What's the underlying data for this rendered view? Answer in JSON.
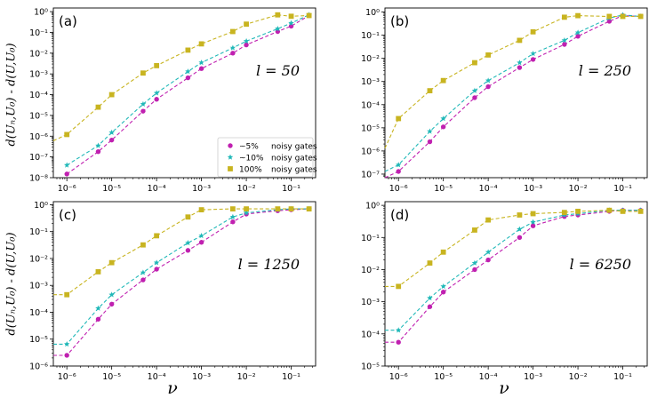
{
  "figure": {
    "ylabel_top": "d(Uₙ,U₀) - d(U,U₀)",
    "ylabel_bottom": "d(Uₙ,U₀) - d(U,U₀)",
    "xlabel": "ν"
  },
  "chart_data": [
    {
      "type": "line",
      "panel": "(a)",
      "annotation": "l = 50",
      "x": [
        1e-06,
        5e-06,
        1e-05,
        5e-05,
        0.0001,
        0.0005,
        0.001,
        0.005,
        0.01,
        0.05,
        0.1,
        0.25
      ],
      "xlim": [
        5e-07,
        0.35
      ],
      "ylim": [
        1e-08,
        1.5
      ],
      "yticks": [
        1e-08,
        1e-07,
        1e-06,
        1e-05,
        0.0001,
        0.001,
        0.01,
        0.1,
        1.0
      ],
      "ytick_labels": [
        "10⁻⁸",
        "10⁻⁷",
        "10⁻⁶",
        "10⁻⁵",
        "10⁻⁴",
        "10⁻³",
        "10⁻²",
        "10⁻¹",
        "10⁰"
      ],
      "xticks": [
        1e-06,
        1e-05,
        0.0001,
        0.001,
        0.01,
        0.1
      ],
      "xtick_labels": [
        "10⁻⁶",
        "10⁻⁵",
        "10⁻⁴",
        "10⁻³",
        "10⁻²",
        "10⁻¹"
      ],
      "legend": {
        "position": "center-right",
        "suffix": "noisy gates"
      },
      "series": [
        {
          "name": "~5%",
          "color": "#c020b0",
          "marker": "circle",
          "values": [
            1.5e-08,
            1.8e-07,
            6.5e-07,
            1.6e-05,
            6e-05,
            0.00065,
            0.0018,
            0.01,
            0.025,
            0.11,
            0.2,
            0.65
          ]
        },
        {
          "name": "~10%",
          "color": "#20b8b8",
          "marker": "star",
          "values": [
            4e-08,
            3.5e-07,
            1.5e-06,
            3.5e-05,
            0.00012,
            0.0013,
            0.0035,
            0.018,
            0.038,
            0.15,
            0.28,
            0.7
          ]
        },
        {
          "name": "100%",
          "color": "#c8b420",
          "marker": "square",
          "lead_in": 6e-07,
          "values": [
            1.2e-06,
            2.5e-05,
            0.0001,
            0.0011,
            0.0025,
            0.014,
            0.028,
            0.11,
            0.25,
            0.7,
            0.6,
            0.65
          ]
        }
      ]
    },
    {
      "type": "line",
      "panel": "(b)",
      "annotation": "l = 250",
      "x": [
        1e-06,
        5e-06,
        1e-05,
        5e-05,
        0.0001,
        0.0005,
        0.001,
        0.005,
        0.01,
        0.05,
        0.1,
        0.25
      ],
      "xlim": [
        5e-07,
        0.35
      ],
      "ylim": [
        7e-08,
        1.5
      ],
      "yticks": [
        1e-07,
        1e-06,
        1e-05,
        0.0001,
        0.001,
        0.01,
        0.1,
        1.0
      ],
      "ytick_labels": [
        "10⁻⁷",
        "10⁻⁶",
        "10⁻⁵",
        "10⁻⁴",
        "10⁻³",
        "10⁻²",
        "10⁻¹",
        "10⁰"
      ],
      "xticks": [
        1e-06,
        1e-05,
        0.0001,
        0.001,
        0.01,
        0.1
      ],
      "xtick_labels": [
        "10⁻⁶",
        "10⁻⁵",
        "10⁻⁴",
        "10⁻³",
        "10⁻²",
        "10⁻¹"
      ],
      "series": [
        {
          "name": "~5%",
          "color": "#c020b0",
          "marker": "circle",
          "lead_in": 7e-08,
          "values": [
            1.3e-07,
            2.5e-06,
            1.1e-05,
            0.0002,
            0.0006,
            0.004,
            0.009,
            0.04,
            0.09,
            0.4,
            0.7,
            0.65
          ]
        },
        {
          "name": "~10%",
          "color": "#20b8b8",
          "marker": "star",
          "lead_in": 1.3e-07,
          "values": [
            2.5e-07,
            7e-06,
            2.5e-05,
            0.0004,
            0.0011,
            0.0065,
            0.016,
            0.06,
            0.13,
            0.55,
            0.75,
            0.65
          ]
        },
        {
          "name": "100%",
          "color": "#c8b420",
          "marker": "square",
          "lead_in": 1.3e-06,
          "values": [
            2.5e-05,
            0.0004,
            0.0011,
            0.0065,
            0.014,
            0.06,
            0.14,
            0.6,
            0.7,
            0.65,
            0.65,
            0.65
          ]
        }
      ]
    },
    {
      "type": "line",
      "panel": "(c)",
      "annotation": "l = 1250",
      "x": [
        1e-06,
        5e-06,
        1e-05,
        5e-05,
        0.0001,
        0.0005,
        0.001,
        0.005,
        0.01,
        0.05,
        0.1,
        0.25
      ],
      "xlim": [
        5e-07,
        0.35
      ],
      "ylim": [
        1e-06,
        1.3
      ],
      "yticks": [
        1e-06,
        1e-05,
        0.0001,
        0.001,
        0.01,
        0.1,
        1.0
      ],
      "ytick_labels": [
        "10⁻⁶",
        "10⁻⁵",
        "10⁻⁴",
        "10⁻³",
        "10⁻²",
        "10⁻¹",
        "10⁰"
      ],
      "xticks": [
        1e-06,
        1e-05,
        0.0001,
        0.001,
        0.01,
        0.1
      ],
      "xtick_labels": [
        "10⁻⁶",
        "10⁻⁵",
        "10⁻⁴",
        "10⁻³",
        "10⁻²",
        "10⁻¹"
      ],
      "series": [
        {
          "name": "~5%",
          "color": "#c020b0",
          "marker": "circle",
          "lead_in": 2.5e-06,
          "values": [
            2.5e-06,
            5.5e-05,
            0.0002,
            0.0016,
            0.004,
            0.02,
            0.04,
            0.23,
            0.45,
            0.6,
            0.65,
            0.7
          ]
        },
        {
          "name": "~10%",
          "color": "#20b8b8",
          "marker": "star",
          "lead_in": 6.5e-06,
          "values": [
            6.5e-06,
            0.00014,
            0.00045,
            0.003,
            0.007,
            0.038,
            0.07,
            0.35,
            0.5,
            0.65,
            0.7,
            0.7
          ]
        },
        {
          "name": "100%",
          "color": "#c8b420",
          "marker": "square",
          "lead_in": 0.00045,
          "values": [
            0.00045,
            0.0032,
            0.007,
            0.032,
            0.07,
            0.35,
            0.65,
            0.7,
            0.7,
            0.7,
            0.7,
            0.7
          ]
        }
      ]
    },
    {
      "type": "line",
      "panel": "(d)",
      "annotation": "l = 6250",
      "x": [
        1e-06,
        5e-06,
        1e-05,
        5e-05,
        0.0001,
        0.0005,
        0.001,
        0.005,
        0.01,
        0.05,
        0.1,
        0.25
      ],
      "xlim": [
        5e-07,
        0.35
      ],
      "ylim": [
        1e-05,
        1.3
      ],
      "yticks": [
        1e-05,
        0.0001,
        0.001,
        0.01,
        0.1,
        1.0
      ],
      "ytick_labels": [
        "10⁻⁵",
        "10⁻⁴",
        "10⁻³",
        "10⁻²",
        "10⁻¹",
        "10⁰"
      ],
      "xticks": [
        1e-06,
        1e-05,
        0.0001,
        0.001,
        0.01,
        0.1
      ],
      "xtick_labels": [
        "10⁻⁶",
        "10⁻⁵",
        "10⁻⁴",
        "10⁻³",
        "10⁻²",
        "10⁻¹"
      ],
      "series": [
        {
          "name": "~5%",
          "color": "#c020b0",
          "marker": "circle",
          "lead_in": 5.5e-05,
          "values": [
            5.5e-05,
            0.0007,
            0.002,
            0.01,
            0.02,
            0.1,
            0.23,
            0.45,
            0.5,
            0.65,
            0.7,
            0.7
          ]
        },
        {
          "name": "~10%",
          "color": "#20b8b8",
          "marker": "star",
          "lead_in": 0.00013,
          "values": [
            0.00013,
            0.0013,
            0.003,
            0.016,
            0.035,
            0.18,
            0.3,
            0.5,
            0.55,
            0.7,
            0.7,
            0.7
          ]
        },
        {
          "name": "100%",
          "color": "#c8b420",
          "marker": "square",
          "lead_in": 0.003,
          "values": [
            0.003,
            0.016,
            0.035,
            0.17,
            0.35,
            0.5,
            0.55,
            0.6,
            0.65,
            0.7,
            0.65,
            0.65
          ]
        }
      ]
    }
  ]
}
